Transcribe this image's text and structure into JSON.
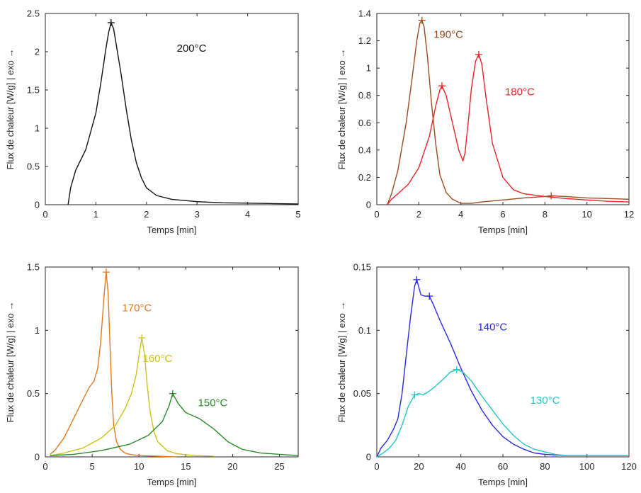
{
  "chart_data": [
    {
      "type": "line",
      "xlabel": "Temps [min]",
      "ylabel": "Flux de chaleur [W/g] | exo →",
      "xlim": [
        0,
        5
      ],
      "ylim": [
        0,
        2.5
      ],
      "xticks": [
        "0",
        "1",
        "2",
        "3",
        "4",
        "5"
      ],
      "yticks": [
        "0",
        "0.5",
        "1",
        "1.5",
        "2",
        "2.5"
      ],
      "grid": false,
      "series": [
        {
          "name": "200°C",
          "color": "#111111",
          "x": [
            0.45,
            0.5,
            0.6,
            0.8,
            1.0,
            1.1,
            1.2,
            1.25,
            1.3,
            1.35,
            1.4,
            1.5,
            1.6,
            1.7,
            1.8,
            1.9,
            2.0,
            2.2,
            2.5,
            3.0,
            3.5,
            4.0,
            4.5,
            5.0
          ],
          "y": [
            0,
            0.22,
            0.45,
            0.72,
            1.2,
            1.6,
            2.05,
            2.25,
            2.38,
            2.3,
            2.1,
            1.7,
            1.25,
            0.85,
            0.55,
            0.35,
            0.22,
            0.12,
            0.07,
            0.04,
            0.025,
            0.02,
            0.015,
            0.01
          ],
          "peaks": [
            {
              "x": 1.3,
              "y": 2.38
            }
          ]
        }
      ],
      "annotations": [
        {
          "text": "200°C",
          "x": 2.6,
          "y": 2.0,
          "color": "#111111"
        }
      ]
    },
    {
      "type": "line",
      "xlabel": "Temps [min]",
      "ylabel": "Flux de chaleur [W/g] | exo →",
      "xlim": [
        0,
        12
      ],
      "ylim": [
        0,
        1.4
      ],
      "xticks": [
        "0",
        "2",
        "4",
        "6",
        "8",
        "10",
        "12"
      ],
      "yticks": [
        "0",
        "0.2",
        "0.4",
        "0.6",
        "0.8",
        "1",
        "1.2",
        "1.4"
      ],
      "grid": false,
      "series": [
        {
          "name": "190°C",
          "color": "#9b4a1e",
          "x": [
            0.5,
            0.7,
            1.0,
            1.4,
            1.7,
            1.9,
            2.05,
            2.15,
            2.25,
            2.4,
            2.6,
            2.8,
            3.0,
            3.3,
            3.6,
            4.0,
            4.5,
            5.0,
            6.0,
            7.0,
            8.0,
            8.3,
            9.0,
            10.0,
            11.0,
            12.0
          ],
          "y": [
            0,
            0.08,
            0.25,
            0.6,
            0.95,
            1.2,
            1.33,
            1.35,
            1.3,
            1.1,
            0.75,
            0.45,
            0.22,
            0.09,
            0.04,
            0.01,
            0.01,
            0.02,
            0.035,
            0.05,
            0.06,
            0.065,
            0.06,
            0.05,
            0.045,
            0.04
          ],
          "peaks": [
            {
              "x": 2.15,
              "y": 1.35
            },
            {
              "x": 8.3,
              "y": 0.065
            }
          ]
        },
        {
          "name": "180°C",
          "color": "#e8232a",
          "x": [
            0.5,
            0.7,
            1.0,
            1.5,
            2.0,
            2.5,
            2.8,
            3.0,
            3.1,
            3.3,
            3.6,
            3.9,
            4.1,
            4.2,
            4.35,
            4.5,
            4.7,
            4.85,
            5.0,
            5.2,
            5.5,
            6.0,
            6.5,
            7.0,
            8.0,
            9.0,
            10.0,
            11.0,
            12.0
          ],
          "y": [
            0,
            0.04,
            0.08,
            0.15,
            0.27,
            0.5,
            0.72,
            0.84,
            0.87,
            0.8,
            0.6,
            0.4,
            0.32,
            0.38,
            0.6,
            0.85,
            1.05,
            1.1,
            1.03,
            0.78,
            0.45,
            0.2,
            0.11,
            0.08,
            0.06,
            0.045,
            0.035,
            0.025,
            0.02
          ],
          "peaks": [
            {
              "x": 3.1,
              "y": 0.87
            },
            {
              "x": 4.85,
              "y": 1.1
            }
          ]
        }
      ],
      "annotations": [
        {
          "text": "190°C",
          "x": 2.7,
          "y": 1.22,
          "color": "#9b4a1e"
        },
        {
          "text": "180°C",
          "x": 6.1,
          "y": 0.8,
          "color": "#e8232a"
        }
      ]
    },
    {
      "type": "line",
      "xlabel": "Temps [min]",
      "ylabel": "Flux de chaleur [W/g] | exo →",
      "xlim": [
        0,
        27
      ],
      "ylim": [
        0,
        1.5
      ],
      "xticks": [
        "0",
        "5",
        "10",
        "15",
        "20",
        "25"
      ],
      "yticks": [
        "0",
        "0.5",
        "1",
        "1.5"
      ],
      "grid": false,
      "series": [
        {
          "name": "170°C",
          "color": "#e07a1f",
          "x": [
            0.5,
            1.0,
            2.0,
            3.0,
            4.0,
            4.7,
            5.2,
            5.6,
            5.9,
            6.1,
            6.3,
            6.5,
            6.7,
            6.9,
            7.1,
            7.3,
            7.6,
            8.0,
            8.5,
            9.0,
            10.0,
            12.0,
            14.0
          ],
          "y": [
            0.02,
            0.05,
            0.15,
            0.3,
            0.45,
            0.55,
            0.6,
            0.7,
            0.9,
            1.1,
            1.3,
            1.46,
            1.3,
            0.9,
            0.5,
            0.25,
            0.12,
            0.06,
            0.03,
            0.02,
            0.01,
            0.005,
            0.0
          ],
          "peaks": [
            {
              "x": 6.5,
              "y": 1.46
            }
          ]
        },
        {
          "name": "160°C",
          "color": "#c9c31f",
          "x": [
            0.5,
            2.0,
            4.0,
            6.0,
            7.5,
            8.5,
            9.2,
            9.7,
            10.0,
            10.3,
            10.6,
            10.9,
            11.2,
            11.6,
            12.0,
            13.0,
            14.0,
            16.0,
            18.0
          ],
          "y": [
            0.01,
            0.03,
            0.07,
            0.15,
            0.25,
            0.38,
            0.5,
            0.65,
            0.8,
            0.94,
            0.8,
            0.55,
            0.35,
            0.2,
            0.12,
            0.05,
            0.025,
            0.01,
            0.005
          ],
          "peaks": [
            {
              "x": 10.3,
              "y": 0.94
            }
          ]
        },
        {
          "name": "150°C",
          "color": "#2a8a2a",
          "x": [
            0.5,
            3.0,
            6.0,
            9.0,
            11.0,
            12.5,
            13.2,
            13.6,
            14.2,
            15.0,
            16.5,
            18.0,
            19.5,
            21.0,
            23.0,
            25.0,
            27.0
          ],
          "y": [
            0.01,
            0.02,
            0.05,
            0.1,
            0.17,
            0.28,
            0.4,
            0.5,
            0.42,
            0.35,
            0.3,
            0.22,
            0.12,
            0.06,
            0.03,
            0.02,
            0.01
          ],
          "peaks": [
            {
              "x": 13.6,
              "y": 0.5
            }
          ]
        }
      ],
      "annotations": [
        {
          "text": "170°C",
          "x": 8.2,
          "y": 1.15,
          "color": "#e07a1f"
        },
        {
          "text": "160°C",
          "x": 10.4,
          "y": 0.75,
          "color": "#c9c31f"
        },
        {
          "text": "150°C",
          "x": 16.3,
          "y": 0.4,
          "color": "#2a8a2a"
        }
      ]
    },
    {
      "type": "line",
      "xlabel": "Temps [min]",
      "ylabel": "Flux de chaleur [W/g] | exo →",
      "xlim": [
        0,
        120
      ],
      "ylim": [
        0,
        0.15
      ],
      "xticks": [
        "0",
        "20",
        "40",
        "60",
        "80",
        "100",
        "120"
      ],
      "yticks": [
        "0",
        "0.05",
        "0.1",
        "0.15"
      ],
      "grid": false,
      "series": [
        {
          "name": "140°C",
          "color": "#2a2ae0",
          "x": [
            0,
            2,
            5,
            8,
            10,
            12,
            14,
            16,
            18,
            19,
            21,
            23,
            25,
            27,
            30,
            35,
            40,
            45,
            50,
            55,
            60,
            65,
            70,
            75,
            80,
            90,
            100,
            110,
            120
          ],
          "y": [
            0,
            0.007,
            0.013,
            0.022,
            0.03,
            0.05,
            0.08,
            0.11,
            0.135,
            0.14,
            0.128,
            0.127,
            0.127,
            0.12,
            0.108,
            0.09,
            0.07,
            0.052,
            0.037,
            0.025,
            0.016,
            0.01,
            0.006,
            0.003,
            0.002,
            0.001,
            0.001,
            0.001,
            0.001
          ],
          "peaks": [
            {
              "x": 19,
              "y": 0.14
            },
            {
              "x": 25,
              "y": 0.127
            }
          ]
        },
        {
          "name": "130°C",
          "color": "#2ac4c4",
          "x": [
            0,
            3,
            6,
            9,
            12,
            15,
            18,
            20,
            22,
            25,
            28,
            32,
            35,
            38,
            41,
            45,
            50,
            55,
            60,
            65,
            70,
            75,
            80,
            85,
            90,
            100,
            110,
            120
          ],
          "y": [
            0,
            0.003,
            0.007,
            0.013,
            0.025,
            0.04,
            0.049,
            0.05,
            0.049,
            0.052,
            0.056,
            0.062,
            0.067,
            0.069,
            0.067,
            0.06,
            0.048,
            0.037,
            0.026,
            0.017,
            0.01,
            0.006,
            0.004,
            0.002,
            0.001,
            0.001,
            0.001,
            0.001
          ],
          "peaks": [
            {
              "x": 18,
              "y": 0.049
            },
            {
              "x": 38,
              "y": 0.069
            }
          ]
        }
      ],
      "annotations": [
        {
          "text": "140°C",
          "x": 48,
          "y": 0.1,
          "color": "#2a2ae0"
        },
        {
          "text": "130°C",
          "x": 73,
          "y": 0.042,
          "color": "#2ac4c4"
        }
      ]
    }
  ]
}
